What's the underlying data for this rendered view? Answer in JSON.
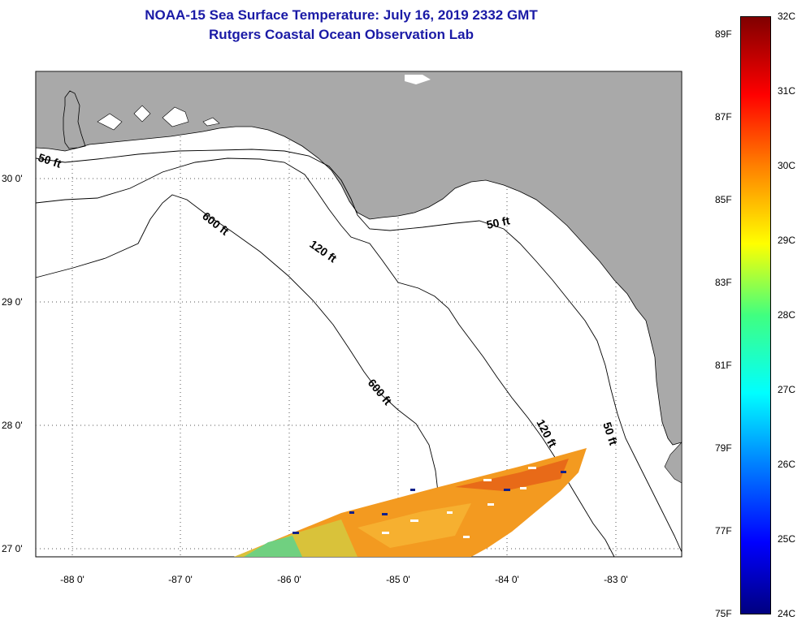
{
  "title": {
    "line1": "NOAA-15 Sea Surface Temperature:  July 16, 2019 2332 GMT",
    "line2": "Rutgers Coastal Ocean Observation Lab"
  },
  "map": {
    "lon_ticks": [
      "-88 0'",
      "-87 0'",
      "-86 0'",
      "-85 0'",
      "-84 0'",
      "-83 0'"
    ],
    "lat_ticks": [
      "30 0'",
      "29 0'",
      "28 0'",
      "27 0'"
    ],
    "isobath_labels": [
      "50 ft",
      "600 ft",
      "120 ft",
      "50 ft",
      "600 ft",
      "120 ft",
      "50 ft"
    ],
    "land_color": "#a9a9a9",
    "water_color": "#ffffff"
  },
  "colorbar": {
    "fahrenheit": [
      "89F",
      "87F",
      "85F",
      "83F",
      "81F",
      "79F",
      "77F",
      "75F"
    ],
    "celsius": [
      "32C",
      "31C",
      "30C",
      "29C",
      "28C",
      "27C",
      "26C",
      "25C",
      "24C"
    ],
    "min_c": 24,
    "max_c": 32
  }
}
